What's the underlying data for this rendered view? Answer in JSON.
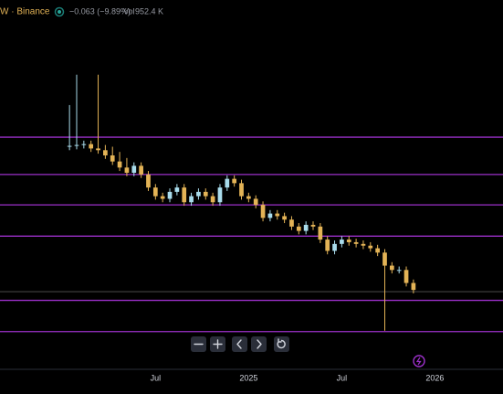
{
  "chart_data": {
    "type": "candlestick",
    "symbol": "W · Binance",
    "change": "−0.063 (−9.89%)",
    "volume_label": "Vol",
    "volume": "952.4 K",
    "up_color": "#a9dcec",
    "down_color": "#e3b356",
    "level_color": "#9b30c9",
    "open": [
      0.494,
      0.496,
      0.498,
      0.5,
      0.49,
      0.486,
      0.474,
      0.46,
      0.446,
      0.434,
      0.45,
      0.43,
      0.4,
      0.38,
      0.374,
      0.39,
      0.4,
      0.366,
      0.38,
      0.39,
      0.38,
      0.366,
      0.4,
      0.42,
      0.41,
      0.38,
      0.374,
      0.36,
      0.33,
      0.34,
      0.334,
      0.326,
      0.31,
      0.3,
      0.314,
      0.31,
      0.28,
      0.254,
      0.27,
      0.28,
      0.274,
      0.27,
      0.266,
      0.26,
      0.25,
      0.22,
      0.21,
      0.21,
      0.18
    ],
    "high": [
      0.59,
      0.66,
      0.508,
      0.508,
      0.66,
      0.498,
      0.494,
      0.482,
      0.468,
      0.458,
      0.458,
      0.438,
      0.408,
      0.388,
      0.398,
      0.408,
      0.408,
      0.388,
      0.398,
      0.398,
      0.388,
      0.408,
      0.428,
      0.428,
      0.418,
      0.388,
      0.382,
      0.368,
      0.348,
      0.348,
      0.342,
      0.334,
      0.318,
      0.322,
      0.322,
      0.318,
      0.288,
      0.278,
      0.288,
      0.288,
      0.282,
      0.278,
      0.274,
      0.268,
      0.258,
      0.228,
      0.218,
      0.218,
      0.188
    ],
    "low": [
      0.486,
      0.488,
      0.49,
      0.482,
      0.478,
      0.466,
      0.452,
      0.438,
      0.426,
      0.426,
      0.422,
      0.392,
      0.372,
      0.366,
      0.366,
      0.382,
      0.358,
      0.358,
      0.372,
      0.372,
      0.358,
      0.358,
      0.392,
      0.402,
      0.372,
      0.366,
      0.352,
      0.322,
      0.322,
      0.326,
      0.318,
      0.302,
      0.292,
      0.292,
      0.302,
      0.272,
      0.246,
      0.246,
      0.262,
      0.266,
      0.262,
      0.258,
      0.252,
      0.242,
      0.07,
      0.202,
      0.202,
      0.172,
      0.156
    ],
    "close": [
      0.496,
      0.498,
      0.5,
      0.49,
      0.486,
      0.474,
      0.46,
      0.446,
      0.434,
      0.45,
      0.43,
      0.4,
      0.38,
      0.374,
      0.39,
      0.4,
      0.366,
      0.38,
      0.39,
      0.38,
      0.366,
      0.4,
      0.42,
      0.41,
      0.38,
      0.374,
      0.36,
      0.33,
      0.34,
      0.334,
      0.326,
      0.31,
      0.3,
      0.314,
      0.31,
      0.28,
      0.254,
      0.27,
      0.28,
      0.274,
      0.27,
      0.266,
      0.26,
      0.25,
      0.22,
      0.21,
      0.21,
      0.18,
      0.164
    ],
    "levels": [
      0.516,
      0.43,
      0.36,
      0.288,
      0.14,
      0.068
    ],
    "price_line": 0.16,
    "ylim": [
      0,
      0.79
    ],
    "xlim": [
      -9.7,
      60.5
    ],
    "xticks": [
      {
        "value": 12,
        "label": "Jul"
      },
      {
        "value": 25,
        "label": "2025"
      },
      {
        "value": 38,
        "label": "Jul"
      },
      {
        "value": 51,
        "label": "2026"
      }
    ]
  }
}
